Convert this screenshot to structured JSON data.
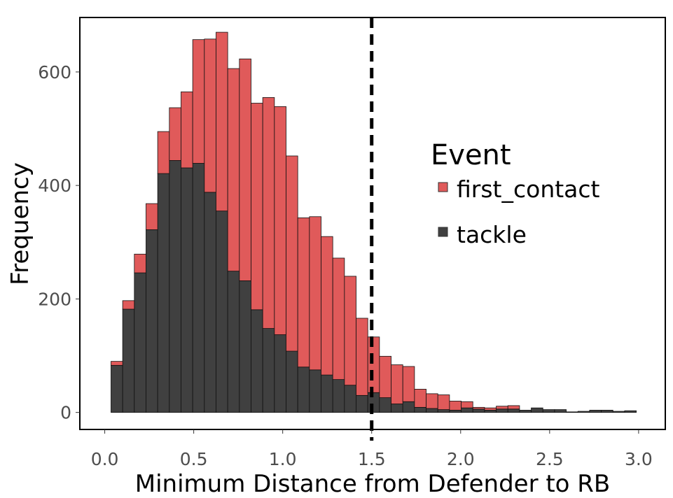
{
  "chart_data": {
    "type": "bar",
    "subtype": "stacked-histogram",
    "xlabel": "Minimum Distance from Defender to RB",
    "ylabel": "Frequency",
    "xlim": [
      -0.14,
      3.15
    ],
    "ylim": [
      -30,
      696
    ],
    "xticks": [
      "0.0",
      "0.5",
      "1.0",
      "1.5",
      "2.0",
      "2.5",
      "3.0"
    ],
    "xtick_values": [
      0,
      0.5,
      1.0,
      1.5,
      2.0,
      2.5,
      3.0
    ],
    "yticks": [
      "0",
      "200",
      "400",
      "600"
    ],
    "ytick_values": [
      0,
      200,
      400,
      600
    ],
    "bin_start": 0.035,
    "bin_width": 0.0656,
    "grid": false,
    "vline": {
      "x": 1.5,
      "style": "dashed",
      "color": "#000000"
    },
    "legend": {
      "title": "Event",
      "placement": "right"
    },
    "series": [
      {
        "name": "tackle",
        "color": "#404040",
        "values": [
          83,
          182,
          246,
          322,
          421,
          444,
          431,
          439,
          388,
          355,
          249,
          232,
          181,
          148,
          137,
          108,
          80,
          75,
          66,
          58,
          48,
          30,
          35,
          26,
          15,
          19,
          9,
          7,
          5,
          4,
          8,
          6,
          4,
          6,
          6,
          4,
          8,
          5,
          5,
          1,
          2,
          4,
          4,
          2,
          3
        ]
      },
      {
        "name": "first_contact",
        "color": "#E05A5A",
        "values": [
          7,
          15,
          33,
          46,
          74,
          93,
          134,
          218,
          270,
          315,
          357,
          391,
          364,
          407,
          402,
          344,
          263,
          270,
          244,
          214,
          192,
          136,
          98,
          73,
          69,
          62,
          32,
          26,
          26,
          16,
          11,
          3,
          4,
          5,
          6,
          0,
          0,
          0,
          0,
          0,
          0,
          0,
          0,
          0,
          0
        ]
      }
    ]
  }
}
